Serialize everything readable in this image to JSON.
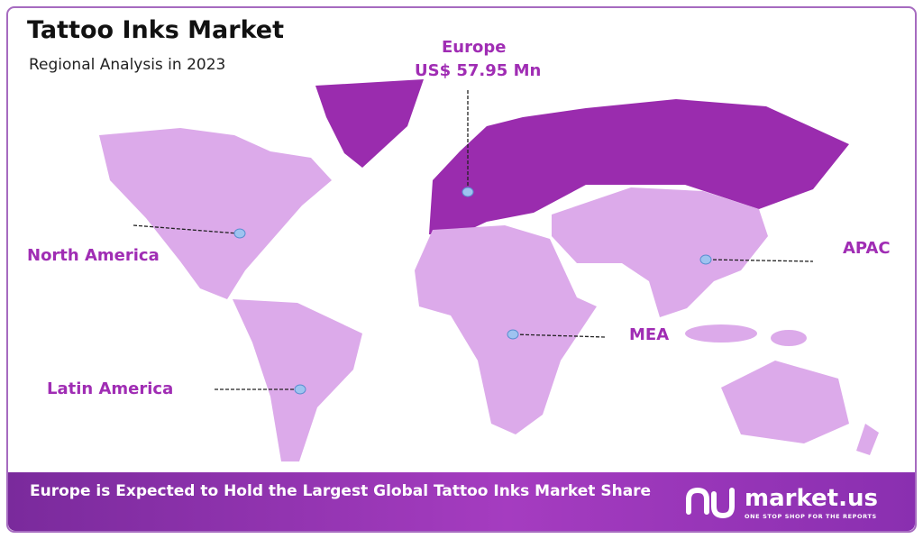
{
  "header": {
    "title": "Tattoo Inks Market",
    "subtitle": "Regional Analysis in 2023"
  },
  "regions": [
    {
      "name": "Europe",
      "value_label": "US$ 57.95 Mn"
    },
    {
      "name": "North America"
    },
    {
      "name": "Latin America"
    },
    {
      "name": "MEA"
    },
    {
      "name": "APAC"
    }
  ],
  "footer": {
    "headline": "Europe is Expected to Hold the Largest Global Tattoo Inks Market Share",
    "logo": "market.us",
    "tagline": "ONE STOP SHOP FOR THE REPORTS"
  }
}
